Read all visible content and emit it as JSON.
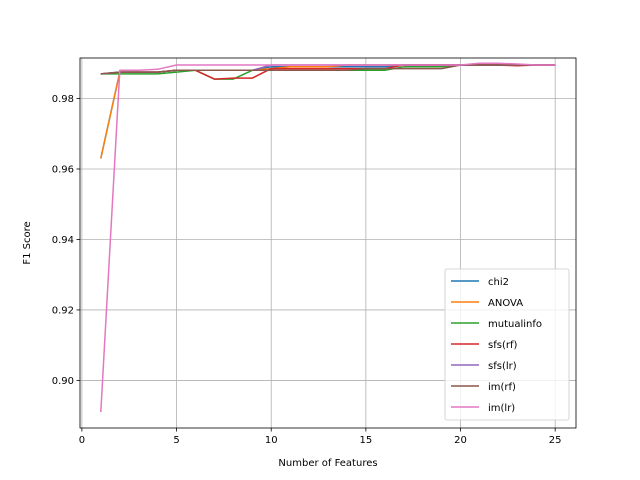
{
  "chart_data": {
    "type": "line",
    "title": "",
    "xlabel": "Number of Features",
    "ylabel": "F1 Score",
    "xlim": [
      -0.1,
      26.1
    ],
    "ylim": [
      0.8865,
      0.9915
    ],
    "xticks": [
      0,
      5,
      10,
      15,
      20,
      25
    ],
    "yticks": [
      0.9,
      0.92,
      0.94,
      0.96,
      0.98
    ],
    "ytick_labels": [
      "0.90",
      "0.92",
      "0.94",
      "0.96",
      "0.98"
    ],
    "grid": true,
    "legend_position": "lower-right",
    "x": [
      1,
      2,
      3,
      4,
      5,
      6,
      7,
      8,
      9,
      10,
      11,
      12,
      13,
      14,
      15,
      16,
      17,
      18,
      19,
      20,
      21,
      22,
      23,
      24,
      25
    ],
    "series": [
      {
        "name": "chi2",
        "color": "#1f77b4",
        "values": [
          0.963,
          0.9875,
          0.9875,
          0.9875,
          0.988,
          0.988,
          0.988,
          0.988,
          0.988,
          0.989,
          0.989,
          0.989,
          0.989,
          0.989,
          0.989,
          0.989,
          0.9895,
          0.9895,
          0.9895,
          0.9895,
          0.9895,
          0.9895,
          0.9895,
          0.9895,
          0.9895
        ]
      },
      {
        "name": "ANOVA",
        "color": "#ff7f0e",
        "values": [
          0.963,
          0.9875,
          0.9875,
          0.9875,
          0.988,
          0.988,
          0.988,
          0.988,
          0.988,
          0.9885,
          0.989,
          0.989,
          0.989,
          0.9895,
          0.9895,
          0.9895,
          0.9895,
          0.9895,
          0.9895,
          0.9895,
          0.9895,
          0.9895,
          0.9895,
          0.9895,
          0.9895
        ]
      },
      {
        "name": "mutualinfo",
        "color": "#2ca02c",
        "values": [
          0.987,
          0.987,
          0.987,
          0.987,
          0.9875,
          0.988,
          0.9855,
          0.9855,
          0.988,
          0.988,
          0.988,
          0.988,
          0.988,
          0.988,
          0.988,
          0.988,
          0.989,
          0.989,
          0.989,
          0.9895,
          0.9895,
          0.9895,
          0.9895,
          0.9895,
          0.9895
        ]
      },
      {
        "name": "sfs(rf)",
        "color": "#d62728",
        "values": [
          0.987,
          0.9875,
          0.9875,
          0.9875,
          0.988,
          0.988,
          0.9855,
          0.9858,
          0.9858,
          0.9885,
          0.9885,
          0.9885,
          0.9885,
          0.9885,
          0.9885,
          0.9885,
          0.9895,
          0.9895,
          0.9895,
          0.9895,
          0.9895,
          0.9895,
          0.9893,
          0.9895,
          0.9895
        ]
      },
      {
        "name": "sfs(lr)",
        "color": "#9467bd",
        "values": [
          0.987,
          0.9875,
          0.9875,
          0.9875,
          0.988,
          0.988,
          0.988,
          0.988,
          0.988,
          0.9895,
          0.9895,
          0.9895,
          0.9895,
          0.9895,
          0.9895,
          0.9895,
          0.9895,
          0.9895,
          0.9895,
          0.9895,
          0.9895,
          0.9895,
          0.9895,
          0.9895,
          0.9895
        ]
      },
      {
        "name": "im(rf)",
        "color": "#8c564b",
        "values": [
          0.987,
          0.9875,
          0.9875,
          0.9875,
          0.988,
          0.988,
          0.988,
          0.988,
          0.988,
          0.988,
          0.988,
          0.988,
          0.988,
          0.988,
          0.9885,
          0.9885,
          0.9885,
          0.9885,
          0.9885,
          0.9895,
          0.9895,
          0.9895,
          0.9895,
          0.9895,
          0.9895
        ]
      },
      {
        "name": "im(lr)",
        "color": "#e377c2",
        "values": [
          0.891,
          0.988,
          0.988,
          0.9883,
          0.9895,
          0.9895,
          0.9895,
          0.9895,
          0.9895,
          0.9895,
          0.9895,
          0.9895,
          0.9895,
          0.9895,
          0.9895,
          0.9895,
          0.9895,
          0.9895,
          0.9895,
          0.9895,
          0.99,
          0.99,
          0.9898,
          0.9895,
          0.9895
        ]
      }
    ]
  }
}
